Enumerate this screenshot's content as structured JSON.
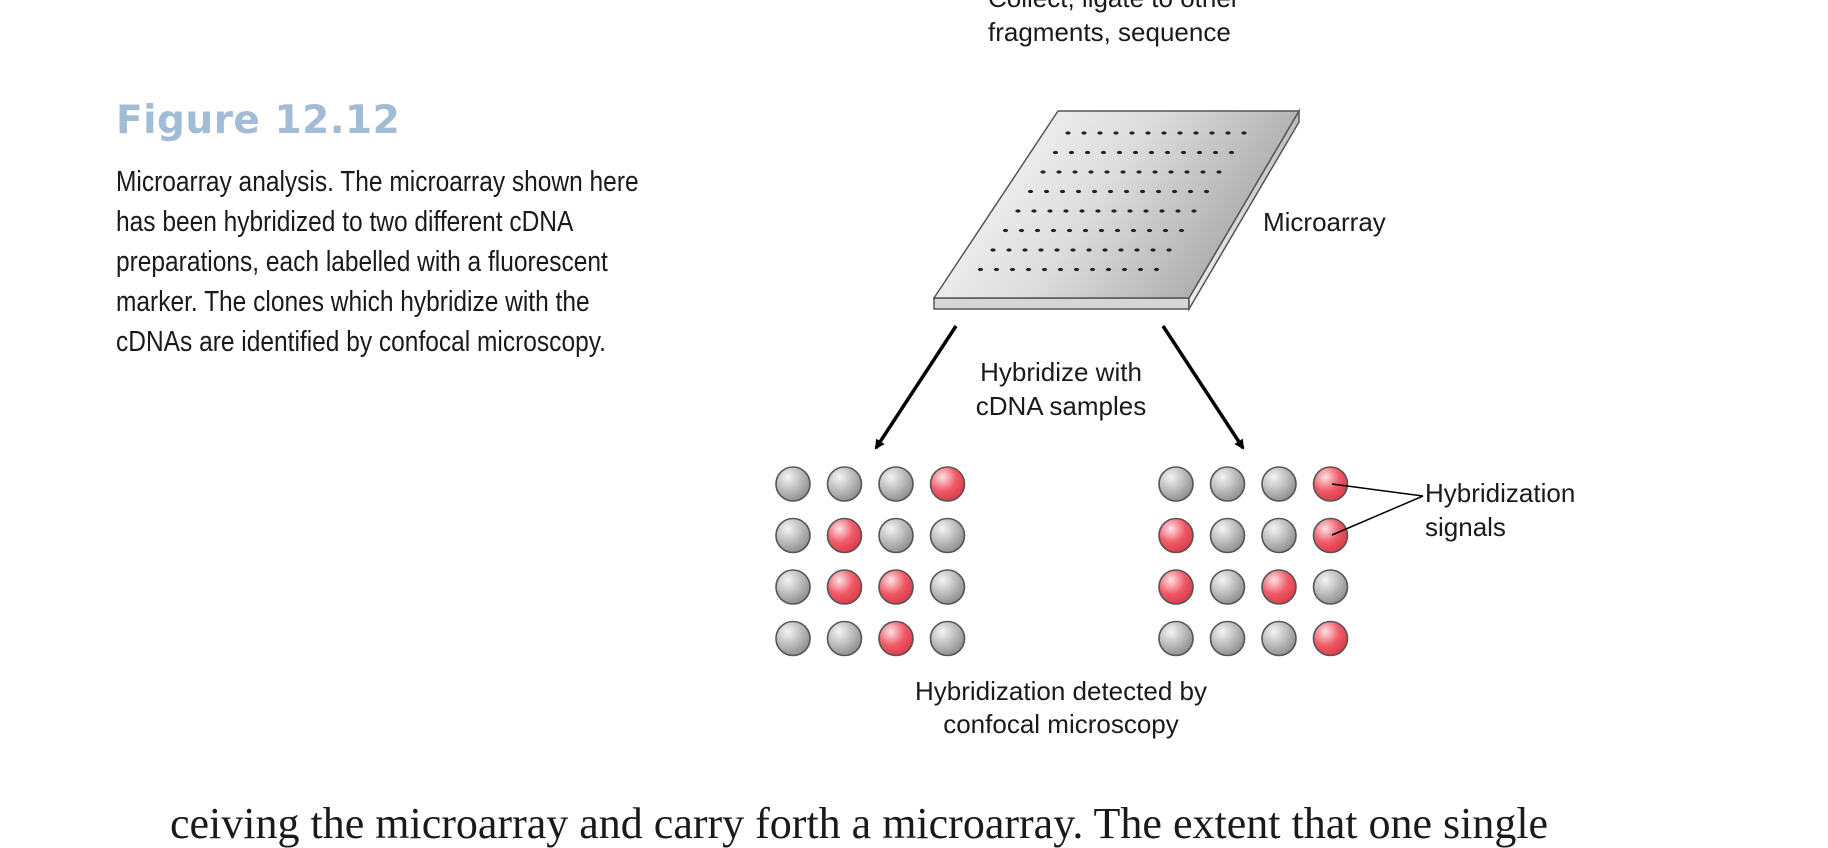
{
  "figure": {
    "label": "Figure 12.12",
    "caption": "Microarray analysis. The microarray shown here has been hybridized to two different cDNA preparations, each labelled with a fluorescent marker. The clones which hybridize with the cDNAs are identified by confocal microscopy."
  },
  "diagram": {
    "top_label_line1": "Collect, ligate to other",
    "top_label_line2": "fragments, sequence",
    "microarray_label": "Microarray",
    "hybridize_line1": "Hybridize with",
    "hybridize_line2": "cDNA samples",
    "signals_line1": "Hybridization",
    "signals_line2": "signals",
    "detected_line1": "Hybridization detected by",
    "detected_line2": "confocal microscopy",
    "left_grid": [
      [
        0,
        0,
        0,
        1
      ],
      [
        0,
        1,
        0,
        0
      ],
      [
        0,
        1,
        1,
        0
      ],
      [
        0,
        0,
        1,
        0
      ]
    ],
    "right_grid": [
      [
        0,
        0,
        0,
        1
      ],
      [
        1,
        0,
        0,
        1
      ],
      [
        1,
        0,
        1,
        0
      ],
      [
        0,
        0,
        0,
        1
      ]
    ],
    "colors": {
      "positive_spot": "#f05a67",
      "negative_spot": "#a8a8a8",
      "figure_label": "#a3bcd6"
    }
  },
  "body_text": "ceiving the microarray and carry forth a microarray. The extent that one single"
}
